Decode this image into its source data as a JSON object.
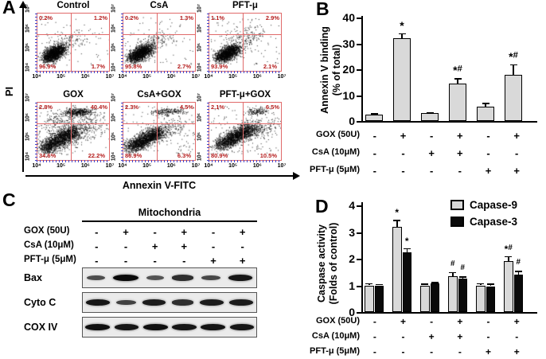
{
  "figure": {
    "panel_labels": {
      "a": "A",
      "b": "B",
      "c": "C",
      "d": "D"
    }
  },
  "colors": {
    "quadrant_line": "#e06a6a",
    "axis_tick_blue": "#4343c8",
    "percent_red": "#b51d1d",
    "bar_fill": "#d9d9d9",
    "capase9_fill": "#d9d9d9",
    "capase3_fill": "#0a0a0a"
  },
  "conditions": {
    "rows": [
      {
        "label": "GOX (50U)",
        "symbols": [
          "-",
          "+",
          "-",
          "+",
          "-",
          "+"
        ]
      },
      {
        "label": "CsA (10μM)",
        "symbols": [
          "-",
          "-",
          "+",
          "+",
          "-",
          "-"
        ]
      },
      {
        "label": "PFT-μ (5μM)",
        "symbols": [
          "-",
          "-",
          "-",
          "-",
          "+",
          "+"
        ]
      }
    ]
  },
  "chart_data": [
    {
      "id": "flow_cytometry",
      "type": "scatter",
      "xlabel": "Annexin V-FITC",
      "ylabel": "PI",
      "tick_labels": [
        "10⁴",
        "10⁵",
        "10⁶",
        "10⁷"
      ],
      "plots": [
        {
          "title": "Control",
          "quadrants": {
            "ul": "0.2%",
            "ur": "1.2%",
            "ll": "96.9%",
            "lr": "1.7%"
          },
          "clusters": [
            [
              0.13,
              0.78,
              0.33,
              0.6,
              0.055,
              0.05,
              1600
            ],
            [
              0.3,
              0.55,
              0.55,
              0.4,
              0.1,
              0.08,
              120
            ]
          ],
          "noise": 60
        },
        {
          "title": "CsA",
          "quadrants": {
            "ul": "0.2%",
            "ur": "1.3%",
            "ll": "95.8%",
            "lr": "2.7%"
          },
          "clusters": [
            [
              0.13,
              0.78,
              0.34,
              0.6,
              0.06,
              0.05,
              1500
            ],
            [
              0.32,
              0.52,
              0.6,
              0.4,
              0.1,
              0.08,
              140
            ]
          ],
          "noise": 70
        },
        {
          "title": "PFT-μ",
          "quadrants": {
            "ul": "1.1%",
            "ur": "2.9%",
            "ll": "93.9%",
            "lr": "2.1%"
          },
          "clusters": [
            [
              0.14,
              0.78,
              0.36,
              0.6,
              0.06,
              0.05,
              1500
            ],
            [
              0.35,
              0.5,
              0.65,
              0.35,
              0.12,
              0.09,
              160
            ]
          ],
          "noise": 90
        },
        {
          "title": "GOX",
          "quadrants": {
            "ul": "2.8%",
            "ur": "40.4%",
            "ll": "34.6%",
            "lr": "22.2%"
          },
          "clusters": [
            [
              0.1,
              0.8,
              0.52,
              0.48,
              0.07,
              0.06,
              1700
            ],
            [
              0.42,
              0.17,
              0.72,
              0.15,
              0.07,
              0.035,
              420
            ],
            [
              0.3,
              0.6,
              0.8,
              0.35,
              0.12,
              0.1,
              330
            ],
            [
              0.15,
              0.35,
              0.45,
              0.25,
              0.1,
              0.08,
              120
            ]
          ],
          "noise": 150
        },
        {
          "title": "CsA+GOX",
          "quadrants": {
            "ul": "2.3%",
            "ur": "4.5%",
            "ll": "86.9%",
            "lr": "6.3%"
          },
          "clusters": [
            [
              0.1,
              0.78,
              0.5,
              0.5,
              0.065,
              0.055,
              1600
            ],
            [
              0.45,
              0.16,
              0.78,
              0.14,
              0.07,
              0.03,
              200
            ],
            [
              0.35,
              0.55,
              0.78,
              0.38,
              0.11,
              0.09,
              260
            ]
          ],
          "noise": 120
        },
        {
          "title": "PFT-μ+GOX",
          "quadrants": {
            "ul": "2.1%",
            "ur": "6.5%",
            "ll": "80.9%",
            "lr": "10.5%"
          },
          "clusters": [
            [
              0.14,
              0.74,
              0.58,
              0.44,
              0.07,
              0.055,
              1700
            ],
            [
              0.55,
              0.16,
              0.75,
              0.14,
              0.05,
              0.03,
              140
            ],
            [
              0.5,
              0.5,
              0.85,
              0.38,
              0.1,
              0.08,
              220
            ]
          ],
          "noise": 130
        }
      ]
    },
    {
      "id": "annexin_binding",
      "type": "bar",
      "ylabel_line1": "Annexin V binding",
      "ylabel_line2": "(% of total)",
      "ylim": [
        0,
        40
      ],
      "yticks": [
        0,
        10,
        20,
        30,
        40
      ],
      "categories": [
        "Control",
        "GOX",
        "CsA",
        "CsA+GOX",
        "PFT-μ",
        "PFT-μ+GOX"
      ],
      "values": [
        2.5,
        32,
        3,
        14.5,
        5.5,
        18
      ],
      "errors": [
        0.5,
        2,
        0.5,
        2,
        1.5,
        4
      ],
      "annotations": [
        "",
        "*",
        "",
        "*#",
        "",
        "*#"
      ]
    },
    {
      "id": "caspase_activity",
      "type": "bar",
      "grouped": true,
      "ylabel_line1": "Caspase activity",
      "ylabel_line2": "(Folds of control)",
      "ylim": [
        0,
        4
      ],
      "yticks": [
        0,
        1,
        2,
        3,
        4
      ],
      "categories": [
        "Control",
        "GOX",
        "CsA",
        "CsA+GOX",
        "PFT-μ",
        "PFT-μ+GOX"
      ],
      "legend_position": "top-right",
      "series": [
        {
          "name": "Capase-9",
          "color": "#d9d9d9",
          "values": [
            1.0,
            3.2,
            1.0,
            1.35,
            1.0,
            1.9
          ],
          "errors": [
            0.08,
            0.25,
            0.07,
            0.15,
            0.08,
            0.2
          ],
          "annotations": [
            "",
            "*",
            "",
            "#",
            "",
            "*#"
          ]
        },
        {
          "name": "Capase-3",
          "color": "#0a0a0a",
          "values": [
            1.0,
            2.25,
            1.07,
            1.25,
            0.97,
            1.4
          ],
          "errors": [
            0.05,
            0.15,
            0.06,
            0.08,
            0.1,
            0.15
          ],
          "annotations": [
            "",
            "*",
            "",
            "#",
            "",
            "#"
          ]
        }
      ]
    }
  ],
  "panelC": {
    "header": "Mitochondria",
    "blots": [
      {
        "label": "Bax",
        "intensities": [
          0.45,
          1.0,
          0.4,
          0.7,
          0.5,
          0.9
        ]
      },
      {
        "label": "Cyto C",
        "intensities": [
          0.9,
          0.55,
          0.85,
          0.7,
          0.85,
          0.85
        ]
      },
      {
        "label": "COX IV",
        "intensities": [
          0.95,
          0.9,
          0.95,
          0.9,
          0.92,
          0.9
        ]
      }
    ]
  }
}
